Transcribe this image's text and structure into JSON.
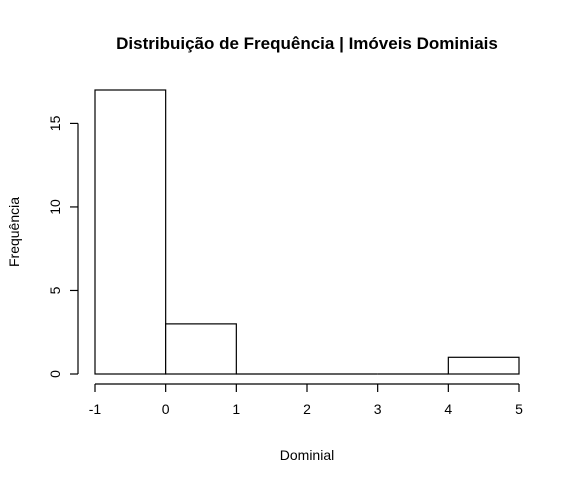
{
  "chart_data": {
    "type": "bar",
    "title": "Distribuição de Frequência | Imóveis Dominiais",
    "xlabel": "Dominial",
    "ylabel": "Frequência",
    "bins": [
      {
        "from": -1,
        "to": 0,
        "count": 17
      },
      {
        "from": 0,
        "to": 1,
        "count": 3
      },
      {
        "from": 1,
        "to": 2,
        "count": 0
      },
      {
        "from": 2,
        "to": 3,
        "count": 0
      },
      {
        "from": 3,
        "to": 4,
        "count": 0
      },
      {
        "from": 4,
        "to": 5,
        "count": 1
      }
    ],
    "xticks": [
      -1,
      0,
      1,
      2,
      3,
      4,
      5
    ],
    "yticks": [
      0,
      5,
      10,
      15
    ],
    "xlim": [
      -1,
      5
    ],
    "ylim": [
      0,
      17
    ],
    "grid": false,
    "bar_fill": "#ffffff",
    "bar_stroke": "#000000"
  }
}
